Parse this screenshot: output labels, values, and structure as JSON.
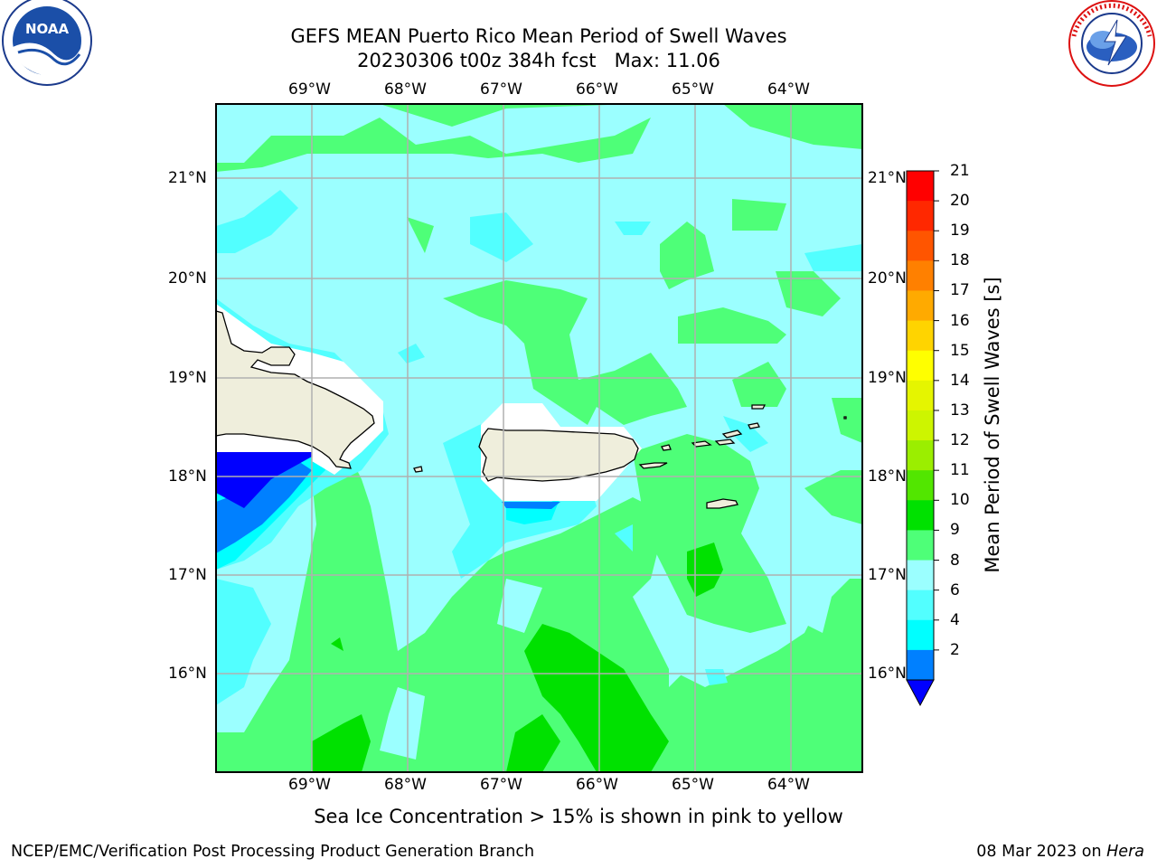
{
  "header": {
    "title_line1": "GEFS MEAN Puerto Rico Mean Period of Swell Waves",
    "title_line2": "20230306 t00z 384h fcst   Max: 11.06"
  },
  "logos": {
    "left": "noaa-logo",
    "right": "national-weather-service-logo"
  },
  "map": {
    "lon_labels": [
      "69°W",
      "68°W",
      "67°W",
      "66°W",
      "65°W",
      "64°W"
    ],
    "lat_labels": [
      "21°N",
      "20°N",
      "19°N",
      "18°N",
      "17°N",
      "16°N"
    ],
    "extent": {
      "lon": [
        -70.0,
        -63.25
      ],
      "lat": [
        15.0,
        21.75
      ]
    },
    "land_color": "#efeedc",
    "gridlines": true
  },
  "colorbar": {
    "label": "Mean Period of Swell Waves [s]",
    "ticks": [
      "21",
      "20",
      "19",
      "18",
      "17",
      "16",
      "15",
      "14",
      "13",
      "12",
      "11",
      "10",
      "9",
      "8",
      "6",
      "4",
      "2"
    ],
    "colors_top_to_bottom": [
      "#ff0000",
      "#ff2800",
      "#ff5500",
      "#ff8000",
      "#ffaa00",
      "#ffd400",
      "#ffff00",
      "#e5f500",
      "#cdf500",
      "#9bee00",
      "#52e600",
      "#00e100",
      "#4eff78",
      "#9bffff",
      "#52ffff",
      "#00ffff",
      "#0080ff"
    ],
    "under_color": "#0000ff"
  },
  "note": "Sea Ice Concentration > 15% is shown in pink to yellow",
  "footer": {
    "left": "NCEP/EMC/Verification Post Processing Product Generation Branch",
    "right_date": "08 Mar 2023 on ",
    "right_host": "Hera"
  }
}
